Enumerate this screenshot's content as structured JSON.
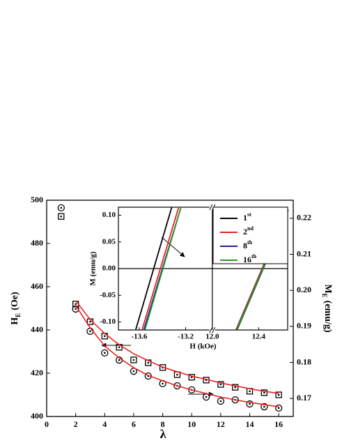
{
  "chart_data": [
    {
      "type": "scatter",
      "xlabel": "λ",
      "ylabel": {
        "main": "H",
        "sub": "E",
        "unit": "(Oe)"
      },
      "y2label": {
        "main": "M",
        "sub": "E",
        "unit": "(emu/g)"
      },
      "xlim": [
        0,
        17
      ],
      "xticks": [
        0,
        2,
        4,
        6,
        8,
        10,
        12,
        14,
        16
      ],
      "ylim": [
        400,
        500
      ],
      "yticks": [
        400,
        420,
        440,
        460,
        480,
        500
      ],
      "y2lim": [
        0.165,
        0.225
      ],
      "y2ticks": [
        0.17,
        0.18,
        0.19,
        {
          "value": 0.2,
          "label": "0.20"
        },
        0.21,
        0.22
      ],
      "series": [
        {
          "marker": "circle",
          "color": "#000000",
          "x": [
            1,
            2,
            3,
            4,
            5,
            6,
            7,
            8,
            9,
            10,
            11,
            12,
            13,
            14,
            15,
            16
          ],
          "values": [
            496.5,
            449.7,
            439.4,
            429.4,
            426.1,
            420.9,
            418.7,
            415.2,
            414.2,
            412.3,
            409,
            407.1,
            407.7,
            405.8,
            404.5,
            403.9
          ]
        },
        {
          "marker": "square",
          "color": "#000000",
          "axis": "y2",
          "x": [
            1,
            2,
            3,
            4,
            5,
            6,
            7,
            8,
            9,
            10,
            11,
            12,
            13,
            14,
            15,
            16
          ],
          "values": [
            0.2205,
            0.1962,
            0.1913,
            0.1873,
            0.1842,
            0.1807,
            0.1799,
            0.1786,
            0.1766,
            0.1759,
            0.1751,
            0.1739,
            0.1731,
            0.172,
            0.1716,
            0.171
          ]
        },
        {
          "marker": "none",
          "color": "#e8231f",
          "x": [
            2,
            3,
            4,
            5,
            6,
            7,
            8,
            9,
            10,
            11,
            12,
            13,
            14,
            15,
            16
          ],
          "values": [
            451.3,
            441,
            432.6,
            427.1,
            422.6,
            419,
            416.5,
            414.2,
            412.3,
            410.6,
            409,
            407.7,
            406.5,
            405.5,
            404.5
          ]
        },
        {
          "marker": "none",
          "color": "#e8231f",
          "axis": "y2",
          "x": [
            2,
            3,
            4,
            5,
            6,
            7,
            8,
            9,
            10,
            11,
            12,
            13,
            14,
            15,
            16
          ],
          "values": [
            0.1971,
            0.1919,
            0.188,
            0.1849,
            0.1824,
            0.1805,
            0.1787,
            0.1774,
            0.1762,
            0.1753,
            0.1743,
            0.1735,
            0.1727,
            0.172,
            0.1714
          ]
        }
      ]
    },
    {
      "type": "line",
      "xlabel": "H (kOe)",
      "ylabel": "M (emu/g)",
      "xlim": [
        [
          -13.78,
          -12.97
        ],
        [
          12.0,
          12.65
        ]
      ],
      "xticks": [
        -13.6,
        -13.2,
        {
          "value": 12,
          "label": "12.0"
        },
        12.4
      ],
      "ylim": [
        -0.115,
        0.115
      ],
      "yticks": [
        {
          "value": -0.1,
          "label": "-0.10"
        },
        -0.05,
        {
          "value": 0,
          "label": "0.00"
        },
        0.05,
        {
          "value": 0.1,
          "label": "0.10"
        }
      ],
      "legend": "upper right",
      "series": [
        {
          "name": "1",
          "sup": "st",
          "color": "#000000",
          "x": [
            -13.63,
            -13.32,
            null,
            12.215,
            12.655
          ],
          "values": [
            -0.114,
            0.115,
            null,
            -0.114,
            0.11
          ]
        },
        {
          "name": "2",
          "sup": "nd",
          "color": "#e8231f",
          "x": [
            -13.575,
            -13.26,
            null,
            12.205,
            12.645
          ],
          "values": [
            -0.114,
            0.115,
            null,
            -0.114,
            0.11
          ]
        },
        {
          "name": "8",
          "sup": "th",
          "color": "#1f1fa0",
          "x": [
            -13.56,
            -13.24,
            null,
            12.21,
            12.65
          ],
          "values": [
            -0.114,
            0.115,
            null,
            -0.114,
            0.11
          ]
        },
        {
          "name": "16",
          "sup": "th",
          "color": "#2a9a2a",
          "x": [
            -13.55,
            -13.24,
            null,
            12.212,
            12.652
          ],
          "values": [
            -0.114,
            0.115,
            null,
            -0.114,
            0.11
          ]
        }
      ]
    }
  ]
}
